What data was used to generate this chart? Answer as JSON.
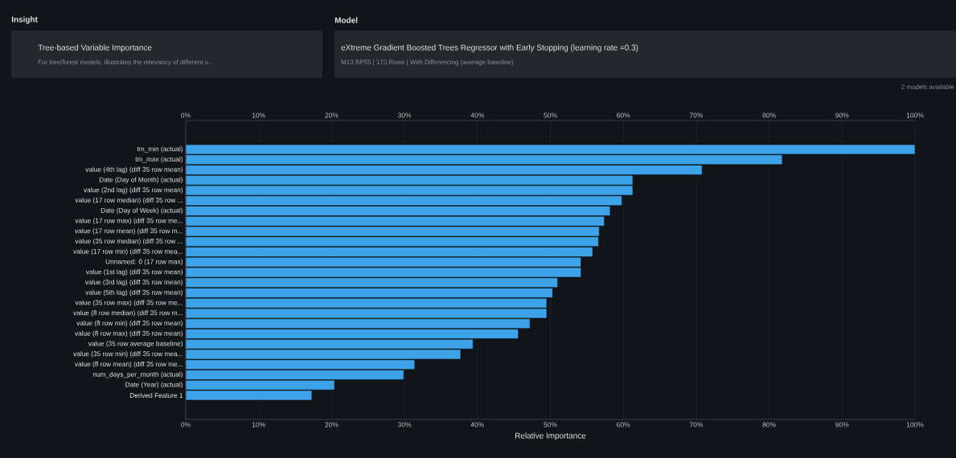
{
  "chart_data": {
    "type": "bar",
    "orientation": "horizontal",
    "title": "Tree-based Variable Importance",
    "subtitle": "For tree/forest models, illustrates the relevancy of different v...",
    "xlabel": "Relative Importance",
    "annotations": [
      "Insight",
      "Model",
      "eXtreme Gradient Boosted Trees Regressor with Early Stopping (learning rate =0.3)",
      "M13 BP55 | 173 Rows | With Differencing (average baseline)",
      "2 models available"
    ],
    "categories": [
      "tm_min (actual)",
      "tm_max (actual)",
      "value (4th lag) (diff 35 row mean)",
      "Date (Day of Month) (actual)",
      "value (2nd lag) (diff 35 row mean)",
      "value (17 row median) (diff 35 row ...",
      "Date (Day of Week) (actual)",
      "value (17 row max) (diff 35 row me...",
      "value (17 row mean) (diff 35 row m...",
      "value (35 row median) (diff 35 row ...",
      "value (17 row min) (diff 35 row mea...",
      "Unnamed: 0 (17 row max)",
      "value (1st lag) (diff 35 row mean)",
      "value (3rd lag) (diff 35 row mean)",
      "value (5th lag) (diff 35 row mean)",
      "value (35 row max) (diff 35 row me...",
      "value (8 row median) (diff 35 row m...",
      "value (8 row min) (diff 35 row mean)",
      "value (8 row max) (diff 35 row mean)",
      "value (35 row average baseline)",
      "value (35 row min) (diff 35 row mea...",
      "value (8 row mean) (diff 35 row me...",
      "num_days_per_month (actual)",
      "Date (Year) (actual)",
      "Derived Feature 1"
    ],
    "values": [
      100,
      81.8,
      70.8,
      61.3,
      61.3,
      59.8,
      58.2,
      57.4,
      56.7,
      56.6,
      55.8,
      54.2,
      54.2,
      51.0,
      50.3,
      49.5,
      49.5,
      47.2,
      45.6,
      39.4,
      37.7,
      31.4,
      29.9,
      20.4,
      17.3
    ],
    "color": "#3ea2e8",
    "grid": "x",
    "xlim": [
      0,
      100
    ],
    "xticks": [
      {
        "value": 0,
        "label": "0%"
      },
      {
        "value": 10,
        "label": "10%"
      },
      {
        "value": 20,
        "label": "20%"
      },
      {
        "value": 30,
        "label": "30%"
      },
      {
        "value": 40,
        "label": "40%"
      },
      {
        "value": 50,
        "label": "50%"
      },
      {
        "value": 60,
        "label": "60%"
      },
      {
        "value": 70,
        "label": "70%"
      },
      {
        "value": 80,
        "label": "80%"
      },
      {
        "value": 90,
        "label": "90%"
      },
      {
        "value": 100,
        "label": "100%"
      }
    ],
    "x2lim": [
      0,
      100
    ],
    "x2ticks": [
      {
        "value": 0,
        "label": "0%"
      },
      {
        "value": 10,
        "label": "10%"
      },
      {
        "value": 20,
        "label": "20%"
      },
      {
        "value": 30,
        "label": "30%"
      },
      {
        "value": 40,
        "label": "40%"
      },
      {
        "value": 50,
        "label": "50%"
      },
      {
        "value": 60,
        "label": "60%"
      },
      {
        "value": 70,
        "label": "70%"
      },
      {
        "value": 80,
        "label": "80%"
      },
      {
        "value": 90,
        "label": "90%"
      },
      {
        "value": 100,
        "label": "100%"
      }
    ]
  }
}
